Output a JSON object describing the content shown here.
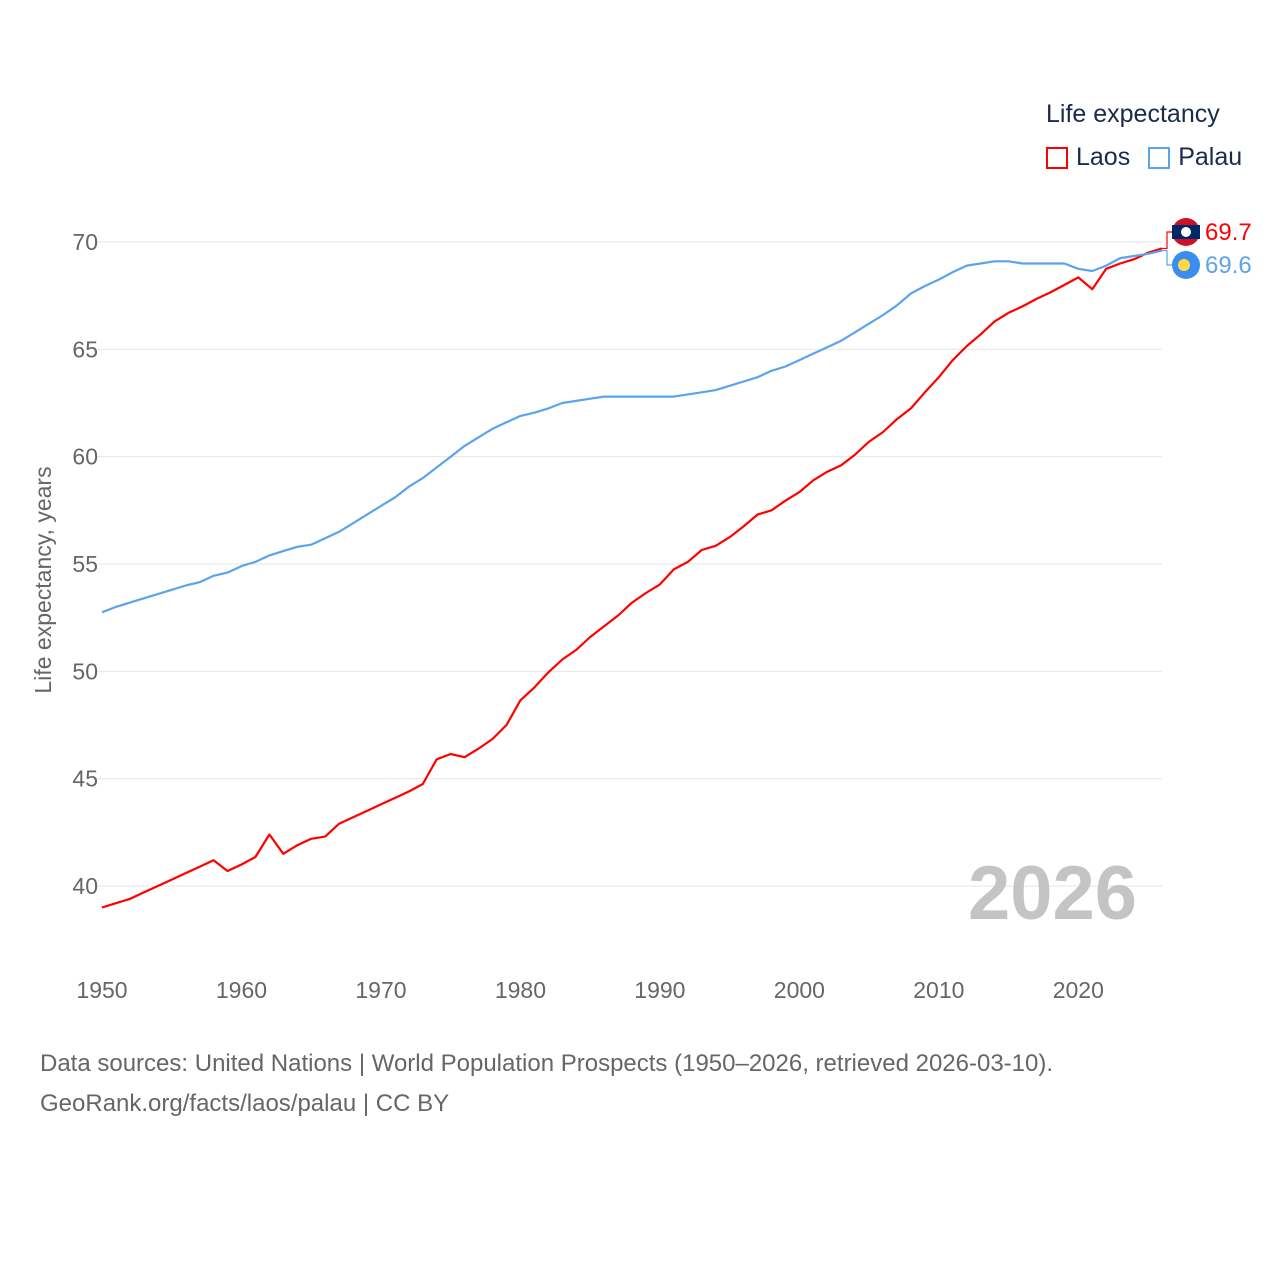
{
  "chart_data": {
    "type": "line",
    "title": "",
    "ylabel": "Life expectancy, years",
    "xlabel": "",
    "xlim": [
      1950,
      2026
    ],
    "ylim": [
      38.5,
      71
    ],
    "x_ticks": [
      1950,
      1960,
      1970,
      1980,
      1990,
      2000,
      2010,
      2020
    ],
    "y_ticks": [
      40,
      45,
      50,
      55,
      60,
      65,
      70
    ],
    "grid": true,
    "legend_title": "Life expectancy",
    "legend_position": "top-right",
    "year_stamp": "2026",
    "x": [
      1950,
      1951,
      1952,
      1953,
      1954,
      1955,
      1956,
      1957,
      1958,
      1959,
      1960,
      1961,
      1962,
      1963,
      1964,
      1965,
      1966,
      1967,
      1968,
      1969,
      1970,
      1971,
      1972,
      1973,
      1974,
      1975,
      1976,
      1977,
      1978,
      1979,
      1980,
      1981,
      1982,
      1983,
      1984,
      1985,
      1986,
      1987,
      1988,
      1989,
      1990,
      1991,
      1992,
      1993,
      1994,
      1995,
      1996,
      1997,
      1998,
      1999,
      2000,
      2001,
      2002,
      2003,
      2004,
      2005,
      2006,
      2007,
      2008,
      2009,
      2010,
      2011,
      2012,
      2013,
      2014,
      2015,
      2016,
      2017,
      2018,
      2019,
      2020,
      2021,
      2022,
      2023,
      2024,
      2025,
      2026
    ],
    "series": [
      {
        "name": "Laos",
        "color": "#ff0000",
        "end_label": "69.7",
        "values": [
          39.0,
          39.2,
          39.4,
          39.7,
          40.0,
          40.3,
          40.6,
          40.9,
          41.2,
          40.7,
          41.0,
          41.35,
          42.4,
          41.5,
          41.9,
          42.2,
          42.3,
          42.9,
          43.2,
          43.5,
          43.8,
          44.1,
          44.4,
          44.75,
          45.9,
          46.15,
          46.0,
          46.4,
          46.85,
          47.5,
          48.65,
          49.25,
          49.95,
          50.55,
          51.0,
          51.6,
          52.1,
          52.6,
          53.2,
          53.65,
          54.05,
          54.75,
          55.1,
          55.65,
          55.85,
          56.25,
          56.75,
          57.3,
          57.5,
          57.95,
          58.35,
          58.9,
          59.3,
          59.6,
          60.1,
          60.7,
          61.15,
          61.75,
          62.25,
          63.0,
          63.7,
          64.5,
          65.15,
          65.7,
          66.3,
          66.7,
          67.0,
          67.35,
          67.65,
          68.0,
          68.35,
          67.8,
          68.75,
          69.0,
          69.2,
          69.5,
          69.7
        ]
      },
      {
        "name": "Palau",
        "color": "#5ba4ec",
        "end_label": "69.6",
        "values": [
          52.75,
          53.0,
          53.2,
          53.4,
          53.6,
          53.8,
          54.0,
          54.15,
          54.45,
          54.6,
          54.9,
          55.1,
          55.4,
          55.6,
          55.8,
          55.9,
          56.2,
          56.5,
          56.9,
          57.3,
          57.7,
          58.1,
          58.6,
          59.0,
          59.5,
          60.0,
          60.5,
          60.9,
          61.3,
          61.6,
          61.9,
          62.05,
          62.25,
          62.5,
          62.6,
          62.7,
          62.8,
          62.8,
          62.8,
          62.8,
          62.8,
          62.8,
          62.9,
          63.0,
          63.1,
          63.3,
          63.5,
          63.7,
          64.0,
          64.2,
          64.5,
          64.8,
          65.1,
          65.4,
          65.8,
          66.2,
          66.6,
          67.05,
          67.6,
          67.95,
          68.25,
          68.6,
          68.9,
          69.0,
          69.1,
          69.1,
          69.0,
          69.0,
          69.0,
          69.0,
          68.75,
          68.65,
          68.9,
          69.25,
          69.35,
          69.45,
          69.6
        ]
      }
    ]
  },
  "footer": {
    "line1": "Data sources: United Nations | World Population Prospects (1950–2026, retrieved 2026-03-10).",
    "line2": "GeoRank.org/facts/laos/palau | CC BY"
  }
}
